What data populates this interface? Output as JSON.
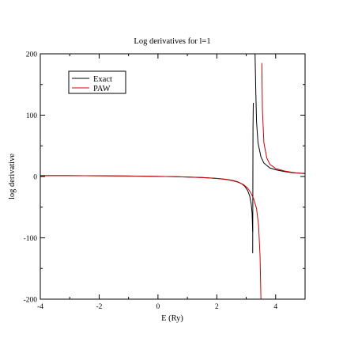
{
  "chart_data": {
    "type": "line",
    "title": "Log derivatives for l=1",
    "xlabel": "E (Ry)",
    "ylabel": "log derivative",
    "xlim": [
      -4,
      5
    ],
    "ylim": [
      -200,
      200
    ],
    "x_ticks": [
      -4,
      -2,
      0,
      2,
      4
    ],
    "x_tick_labels": [
      "-4",
      "-2",
      "0",
      "2",
      "4"
    ],
    "y_ticks": [
      -200,
      -100,
      0,
      100,
      200
    ],
    "y_tick_labels": [
      "-200",
      "-100",
      "0",
      "100",
      "200"
    ],
    "grid": false,
    "legend_position": "top-left",
    "series": [
      {
        "name": "Exact",
        "color": "#000000",
        "segments": [
          [
            [
              -4,
              1.5
            ],
            [
              -3,
              1.4
            ],
            [
              -2,
              1.2
            ],
            [
              -1,
              0.8
            ],
            [
              0,
              0.2
            ],
            [
              0.5,
              -0.2
            ],
            [
              1,
              -0.8
            ],
            [
              1.5,
              -1.6
            ],
            [
              2,
              -3
            ],
            [
              2.3,
              -4.5
            ],
            [
              2.5,
              -6
            ],
            [
              2.7,
              -8.5
            ],
            [
              2.85,
              -12
            ],
            [
              2.95,
              -16
            ],
            [
              3.05,
              -23
            ],
            [
              3.12,
              -32
            ],
            [
              3.17,
              -45
            ],
            [
              3.2,
              -60
            ],
            [
              3.22,
              -90
            ]
          ],
          [
            [
              3.22,
              -125
            ],
            [
              3.23,
              80
            ],
            [
              3.24,
              120
            ]
          ],
          [
            [
              3.3,
              200
            ],
            [
              3.32,
              150
            ],
            [
              3.35,
              90
            ],
            [
              3.4,
              55
            ],
            [
              3.5,
              32
            ],
            [
              3.6,
              22
            ],
            [
              3.8,
              14
            ],
            [
              4.0,
              11
            ],
            [
              4.3,
              8
            ],
            [
              4.6,
              6
            ],
            [
              5,
              5
            ]
          ]
        ]
      },
      {
        "name": "PAW",
        "color": "#cc0000",
        "segments": [
          [
            [
              -4,
              1.5
            ],
            [
              -3,
              1.4
            ],
            [
              -2,
              1.2
            ],
            [
              -1,
              0.8
            ],
            [
              0,
              0.2
            ],
            [
              0.5,
              -0.2
            ],
            [
              1,
              -0.9
            ],
            [
              1.5,
              -1.8
            ],
            [
              2,
              -3.2
            ],
            [
              2.3,
              -4.8
            ],
            [
              2.5,
              -6.5
            ],
            [
              2.7,
              -9
            ],
            [
              2.9,
              -13
            ],
            [
              3.05,
              -19
            ],
            [
              3.15,
              -26
            ],
            [
              3.25,
              -36
            ],
            [
              3.35,
              -52
            ],
            [
              3.42,
              -80
            ],
            [
              3.47,
              -130
            ],
            [
              3.5,
              -200
            ]
          ],
          [
            [
              3.53,
              185
            ],
            [
              3.55,
              110
            ],
            [
              3.6,
              55
            ],
            [
              3.7,
              30
            ],
            [
              3.8,
              20
            ],
            [
              4.0,
              13
            ],
            [
              4.3,
              9
            ],
            [
              4.6,
              6.5
            ],
            [
              5,
              4.5
            ]
          ]
        ]
      }
    ]
  }
}
